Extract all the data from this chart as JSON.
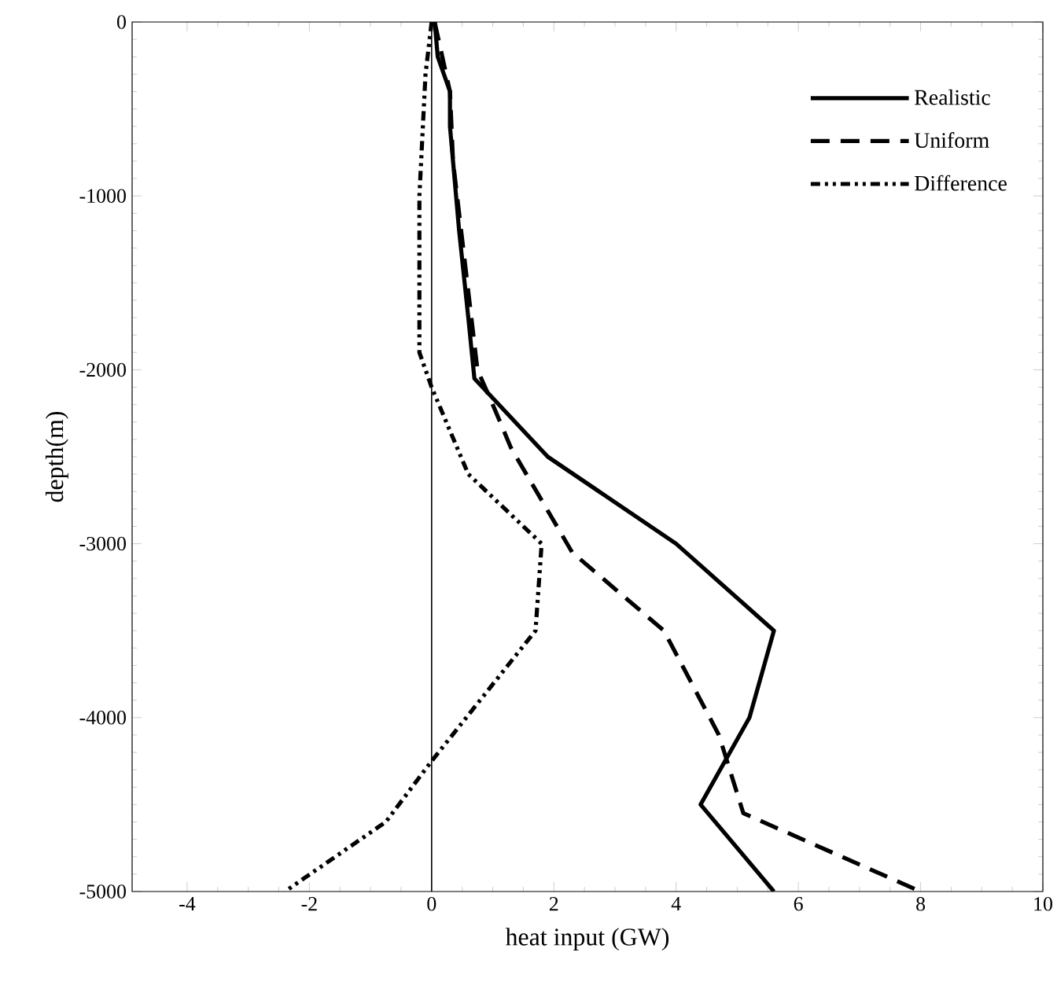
{
  "chart_data": {
    "type": "line",
    "xlabel": "heat input (GW)",
    "ylabel": "depth(m)",
    "xlim": [
      -4.9,
      10
    ],
    "ylim": [
      -5000,
      0
    ],
    "xticks": [
      -4,
      -2,
      0,
      2,
      4,
      6,
      8,
      10
    ],
    "yticks": [
      -5000,
      -4000,
      -3000,
      -2000,
      -1000,
      0
    ],
    "grid": false,
    "legend": "top right",
    "marker": "none",
    "ref_lines": [
      {
        "axis": "x",
        "value": 0,
        "color": "#000000",
        "line_style": "solid"
      }
    ],
    "series": [
      {
        "name": "Realistic",
        "color": "#000000",
        "line_style": "solid",
        "x": [
          0.05,
          0.1,
          0.3,
          0.3,
          0.45,
          0.6,
          0.7,
          1.9,
          4.0,
          5.6,
          5.2,
          4.4,
          5.6
        ],
        "values": [
          0,
          -200,
          -400,
          -600,
          -1200,
          -1700,
          -2050,
          -2500,
          -3000,
          -3500,
          -4000,
          -4500,
          -5000
        ]
      },
      {
        "name": "Uniform",
        "color": "#000000",
        "line_style": "dashed",
        "x": [
          0.05,
          0.3,
          0.35,
          0.55,
          0.75,
          1.0,
          1.3,
          2.3,
          3.8,
          4.7,
          5.1,
          8.0
        ],
        "values": [
          0,
          -400,
          -800,
          -1400,
          -2000,
          -2200,
          -2450,
          -3050,
          -3500,
          -4100,
          -4550,
          -5000
        ]
      },
      {
        "name": "Difference",
        "color": "#000000",
        "line_style": "dashdotted",
        "x": [
          0.0,
          -0.1,
          -0.2,
          -0.2,
          0.0,
          0.6,
          1.8,
          1.7,
          0.0,
          -0.75,
          -2.4
        ],
        "values": [
          0,
          -300,
          -1000,
          -1900,
          -2100,
          -2600,
          -3000,
          -3500,
          -4250,
          -4600,
          -5000
        ]
      }
    ]
  }
}
